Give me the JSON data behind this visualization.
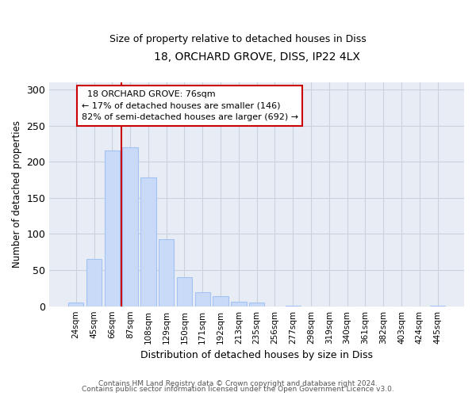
{
  "title": "18, ORCHARD GROVE, DISS, IP22 4LX",
  "subtitle": "Size of property relative to detached houses in Diss",
  "xlabel": "Distribution of detached houses by size in Diss",
  "ylabel": "Number of detached properties",
  "footer_line1": "Contains HM Land Registry data © Crown copyright and database right 2024.",
  "footer_line2": "Contains public sector information licensed under the Open Government Licence v3.0.",
  "bar_labels": [
    "24sqm",
    "45sqm",
    "66sqm",
    "87sqm",
    "108sqm",
    "129sqm",
    "150sqm",
    "171sqm",
    "192sqm",
    "213sqm",
    "235sqm",
    "256sqm",
    "277sqm",
    "298sqm",
    "319sqm",
    "340sqm",
    "361sqm",
    "382sqm",
    "403sqm",
    "424sqm",
    "445sqm"
  ],
  "bar_values": [
    5,
    65,
    215,
    220,
    178,
    93,
    40,
    19,
    14,
    6,
    5,
    0,
    1,
    0,
    0,
    0,
    0,
    0,
    0,
    0,
    1
  ],
  "bar_color": "#c9daf8",
  "bar_edge_color": "#a4c2f4",
  "grid_color": "#c9d3e0",
  "background_color": "#e8edf5",
  "vline_color": "#cc0000",
  "vline_position": 2.5,
  "annotation_line1": "18 ORCHARD GROVE: 76sqm",
  "annotation_line2": "← 17% of detached houses are smaller (146)",
  "annotation_line3": "82% of semi-detached houses are larger (692) →",
  "ylim": [
    0,
    310
  ],
  "yticks": [
    0,
    50,
    100,
    150,
    200,
    250,
    300
  ],
  "bar_width": 0.85
}
